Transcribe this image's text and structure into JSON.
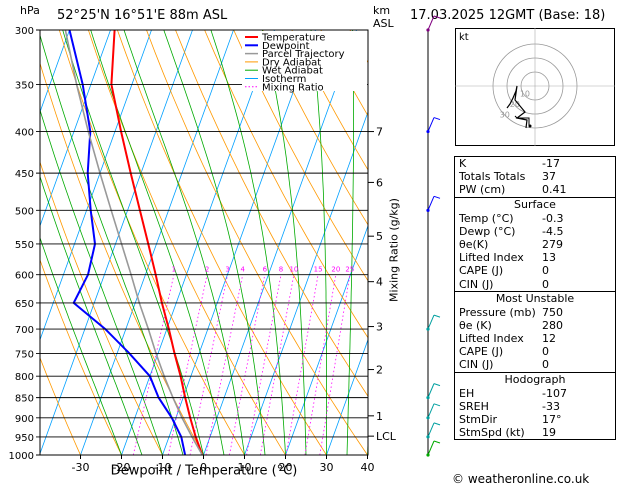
{
  "header": {
    "unit_p": "hPa",
    "location": "52°25'N 16°51'E 88m ASL",
    "unit_km": "km",
    "unit_asl": "ASL",
    "datetime": "17.03.2025 12GMT (Base: 18)"
  },
  "legend": [
    {
      "label": "Temperature",
      "color": "#ff0000",
      "style": "solid",
      "width": 2
    },
    {
      "label": "Dewpoint",
      "color": "#0000ff",
      "style": "solid",
      "width": 2
    },
    {
      "label": "Parcel Trajectory",
      "color": "#999999",
      "style": "solid",
      "width": 1.5
    },
    {
      "label": "Dry Adiabat",
      "color": "#ff9900",
      "style": "solid",
      "width": 1
    },
    {
      "label": "Wet Adiabat",
      "color": "#00aa00",
      "style": "solid",
      "width": 1
    },
    {
      "label": "Isotherm",
      "color": "#00a0ff",
      "style": "solid",
      "width": 1
    },
    {
      "label": "Mixing Ratio",
      "color": "#ff00ff",
      "style": "dotted",
      "width": 1
    }
  ],
  "chart_data": {
    "type": "line",
    "title": "52°25'N 16°51'E 88m ASL",
    "xlabel": "Dewpoint / Temperature (°C)",
    "ylabel": "hPa",
    "xlim": [
      -40,
      40
    ],
    "ylim": [
      1000,
      300
    ],
    "log_y": true,
    "skew": true,
    "pressure_ticks": [
      300,
      350,
      400,
      450,
      500,
      550,
      600,
      650,
      700,
      750,
      800,
      850,
      900,
      950,
      1000
    ],
    "pressure_labels": [
      "300",
      "350",
      "400",
      "450",
      "500",
      "550",
      "600",
      "650",
      "700",
      "750",
      "800",
      "850",
      "900",
      "950",
      "1000"
    ],
    "temp_ticks": [
      -30,
      -20,
      -10,
      0,
      10,
      20,
      30,
      40
    ],
    "temp_labels": [
      "-30",
      "-20",
      "-10",
      "0",
      "10",
      "20",
      "30",
      "40"
    ],
    "km_ticks": [
      {
        "p": 400,
        "label": "7"
      },
      {
        "p": 462,
        "label": "6"
      },
      {
        "p": 538,
        "label": "5"
      },
      {
        "p": 612,
        "label": "4"
      },
      {
        "p": 695,
        "label": "3"
      },
      {
        "p": 785,
        "label": "2"
      },
      {
        "p": 895,
        "label": "1"
      },
      {
        "p": 948,
        "label": "LCL"
      }
    ],
    "mixing_ratio_label": "Mixing Ratio (g/kg)",
    "mixing_ratios": [
      {
        "label": "1",
        "w": 1
      },
      {
        "label": "2",
        "w": 2
      },
      {
        "label": "3",
        "w": 3
      },
      {
        "label": "4",
        "w": 4
      },
      {
        "label": "6",
        "w": 6
      },
      {
        "label": "8",
        "w": 8
      },
      {
        "label": "10",
        "w": 10
      },
      {
        "label": "15",
        "w": 15
      },
      {
        "label": "20",
        "w": 20
      },
      {
        "label": "25",
        "w": 25
      }
    ],
    "series": [
      {
        "name": "Temperature",
        "color": "#ff0000",
        "points": [
          [
            1000,
            -0.3
          ],
          [
            950,
            -3.5
          ],
          [
            900,
            -6.5
          ],
          [
            850,
            -9.5
          ],
          [
            800,
            -12.5
          ],
          [
            750,
            -16
          ],
          [
            700,
            -19.5
          ],
          [
            650,
            -23.5
          ],
          [
            600,
            -27.5
          ],
          [
            550,
            -32
          ],
          [
            500,
            -37
          ],
          [
            450,
            -42.5
          ],
          [
            400,
            -48.5
          ],
          [
            350,
            -55
          ],
          [
            300,
            -59
          ]
        ]
      },
      {
        "name": "Dewpoint",
        "color": "#0000ff",
        "points": [
          [
            1000,
            -4.5
          ],
          [
            950,
            -7
          ],
          [
            900,
            -11
          ],
          [
            850,
            -16
          ],
          [
            800,
            -20
          ],
          [
            750,
            -27
          ],
          [
            700,
            -35
          ],
          [
            650,
            -45
          ],
          [
            600,
            -44
          ],
          [
            550,
            -45
          ],
          [
            500,
            -49
          ],
          [
            450,
            -53
          ],
          [
            400,
            -56
          ],
          [
            350,
            -62
          ],
          [
            300,
            -70
          ]
        ]
      },
      {
        "name": "Parcel Trajectory",
        "color": "#999999",
        "points": [
          [
            1000,
            -0.3
          ],
          [
            950,
            -4.4
          ],
          [
            900,
            -8.5
          ],
          [
            850,
            -12.5
          ],
          [
            800,
            -16.5
          ],
          [
            750,
            -20.5
          ],
          [
            700,
            -24.5
          ],
          [
            650,
            -29
          ],
          [
            600,
            -33.5
          ],
          [
            550,
            -38.5
          ],
          [
            500,
            -44
          ],
          [
            450,
            -50
          ],
          [
            400,
            -56.5
          ],
          [
            350,
            -63.5
          ],
          [
            300,
            -71
          ]
        ]
      }
    ]
  },
  "stats": {
    "basic": [
      {
        "k": "K",
        "v": "-17"
      },
      {
        "k": "Totals Totals",
        "v": "37"
      },
      {
        "k": "PW (cm)",
        "v": "0.41"
      }
    ],
    "surface_title": "Surface",
    "surface": [
      {
        "k": "Temp (°C)",
        "v": "-0.3"
      },
      {
        "k": "Dewp (°C)",
        "v": "-4.5"
      },
      {
        "k": "θe(K)",
        "v": "279"
      },
      {
        "k": "Lifted Index",
        "v": "13"
      },
      {
        "k": "CAPE (J)",
        "v": "0"
      },
      {
        "k": "CIN (J)",
        "v": "0"
      }
    ],
    "unstable_title": "Most Unstable",
    "unstable": [
      {
        "k": "Pressure (mb)",
        "v": "750"
      },
      {
        "k": "θe (K)",
        "v": "280"
      },
      {
        "k": "Lifted Index",
        "v": "12"
      },
      {
        "k": "CAPE (J)",
        "v": "0"
      },
      {
        "k": "CIN (J)",
        "v": "0"
      }
    ],
    "hodo_title": "Hodograph",
    "hodo": [
      {
        "k": "EH",
        "v": "-107"
      },
      {
        "k": "SREH",
        "v": "-33"
      },
      {
        "k": "StmDir",
        "v": "17°"
      },
      {
        "k": "StmSpd (kt)",
        "v": "19"
      }
    ]
  },
  "hodograph": {
    "unit": "kt",
    "ring_labels": [
      "10",
      "20",
      "30"
    ]
  },
  "footer": {
    "copyright": "© weatheronline.co.uk"
  }
}
